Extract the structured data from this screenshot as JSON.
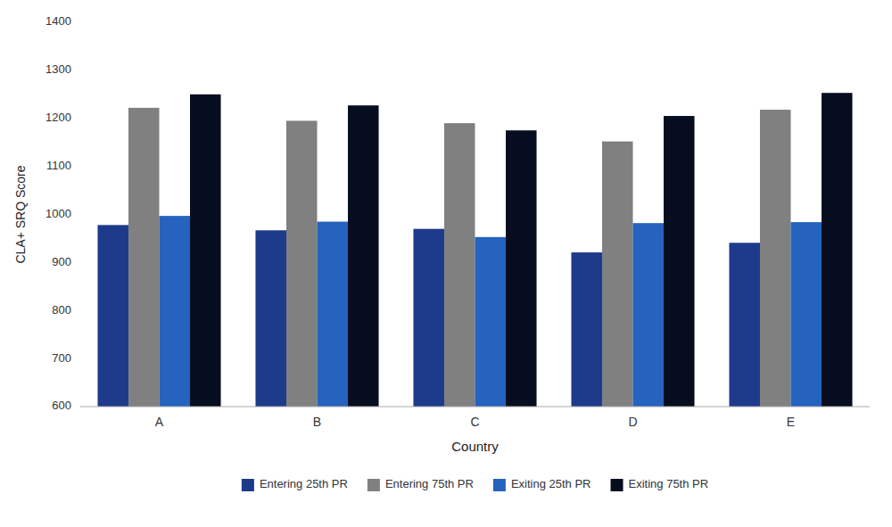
{
  "chart_data": {
    "type": "bar",
    "xlabel": "Country",
    "ylabel": "CLA+ SRQ Score",
    "categories": [
      "A",
      "B",
      "C",
      "D",
      "E"
    ],
    "series": [
      {
        "name": "Entering 25th PR",
        "color": "#1e3a8a",
        "values": [
          978,
          967,
          970,
          921,
          941
        ]
      },
      {
        "name": "Entering 75th PR",
        "color": "#808080",
        "values": [
          1222,
          1195,
          1190,
          1152,
          1218
        ]
      },
      {
        "name": "Exiting 25th PR",
        "color": "#2563be",
        "values": [
          997,
          985,
          953,
          982,
          984
        ]
      },
      {
        "name": "Exiting 75th PR",
        "color": "#060d1f",
        "values": [
          1250,
          1227,
          1175,
          1205,
          1253
        ]
      }
    ],
    "ylim": [
      600,
      1400
    ],
    "yticks": [
      600,
      700,
      800,
      900,
      1000,
      1100,
      1200,
      1300,
      1400
    ],
    "grid": false,
    "legend": "bottom"
  }
}
